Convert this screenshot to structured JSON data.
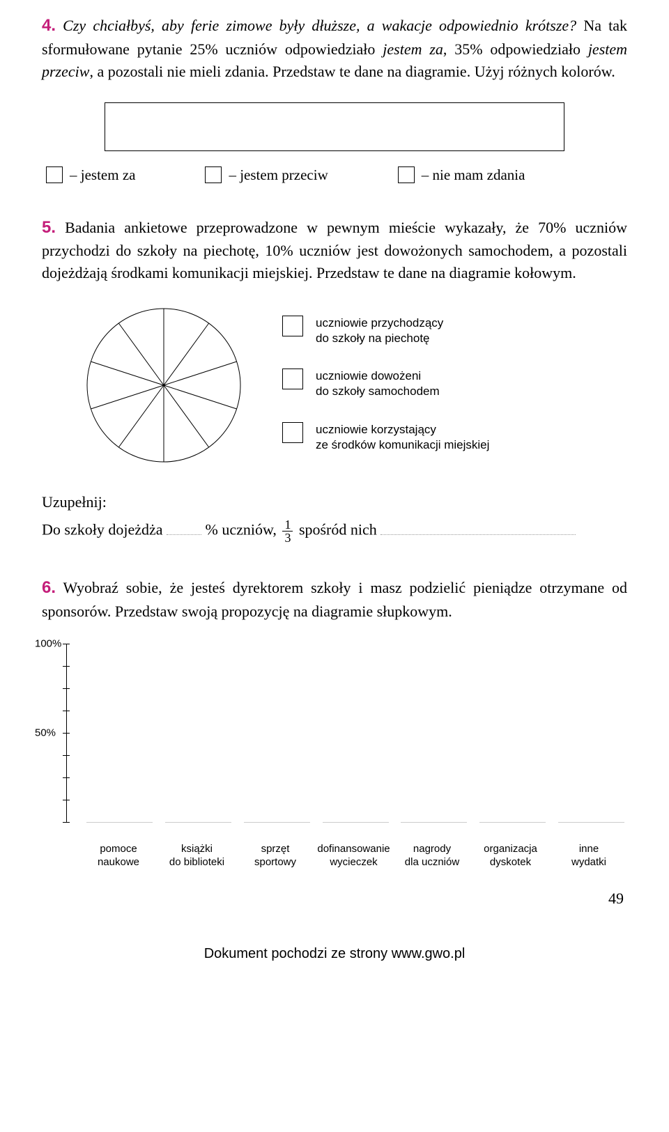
{
  "task4": {
    "number": "4.",
    "question_italic": "Czy chciałbyś, aby ferie zimowe były dłuższe, a wakacje odpowiednio krótsze?",
    "body_part1": " Na tak sformułowane pytanie 25% uczniów odpowiedziało ",
    "italic1": "jestem za",
    "body_part2": ", 35% odpowiedziało ",
    "italic2": "jestem przeciw",
    "body_part3": ", a pozostali nie mieli zdania. Przedstaw te dane na diagramie. Użyj różnych kolorów.",
    "legend": [
      "– jestem za",
      "– jestem przeciw",
      "– nie mam zdania"
    ]
  },
  "task5": {
    "number": "5.",
    "body": "Badania ankietowe przeprowadzone w pewnym mieście wykazały, że 70% uczniów przychodzi do szkoły na piechotę, 10% uczniów jest dowożonych samochodem, a pozostali dojeżdżają środkami komunikacji miejskiej. Przedstaw te dane na diagramie kołowym.",
    "pie": {
      "slices": 10,
      "radius": 110,
      "stroke": "#000000",
      "stroke_width": 1
    },
    "legend": [
      {
        "line1": "uczniowie przychodzący",
        "line2": "do szkoły na piechotę"
      },
      {
        "line1": "uczniowie dowożeni",
        "line2": "do szkoły samochodem"
      },
      {
        "line1": "uczniowie korzystający",
        "line2": "ze środków komunikacji miejskiej"
      }
    ],
    "fill": {
      "heading": "Uzupełnij:",
      "text1": "Do szkoły dojeżdża ",
      "text2": " % uczniów, ",
      "frac_num": "1",
      "frac_den": "3",
      "text3": " spośród nich "
    }
  },
  "task6": {
    "number": "6.",
    "body": "Wyobraź sobie, że jesteś dyrektorem szkoły i masz podzielić pieniądze otrzymane od sponsorów. Przedstaw swoją propozycję na diagramie słupkowym.",
    "chart": {
      "y_labels": [
        "100%",
        "50%"
      ],
      "y_tick_count": 8,
      "categories": [
        {
          "line1": "pomoce",
          "line2": "naukowe"
        },
        {
          "line1": "książki",
          "line2": "do biblioteki"
        },
        {
          "line1": "sprzęt",
          "line2": "sportowy"
        },
        {
          "line1": "dofinansowanie",
          "line2": "wycieczek"
        },
        {
          "line1": "nagrody",
          "line2": "dla uczniów"
        },
        {
          "line1": "organizacja",
          "line2": "dyskotek"
        },
        {
          "line1": "inne",
          "line2": "wydatki"
        }
      ]
    }
  },
  "page_number": "49",
  "footer": "Dokument pochodzi ze strony www.gwo.pl",
  "colors": {
    "accent": "#c41e7a",
    "text": "#000000",
    "bg": "#ffffff"
  }
}
